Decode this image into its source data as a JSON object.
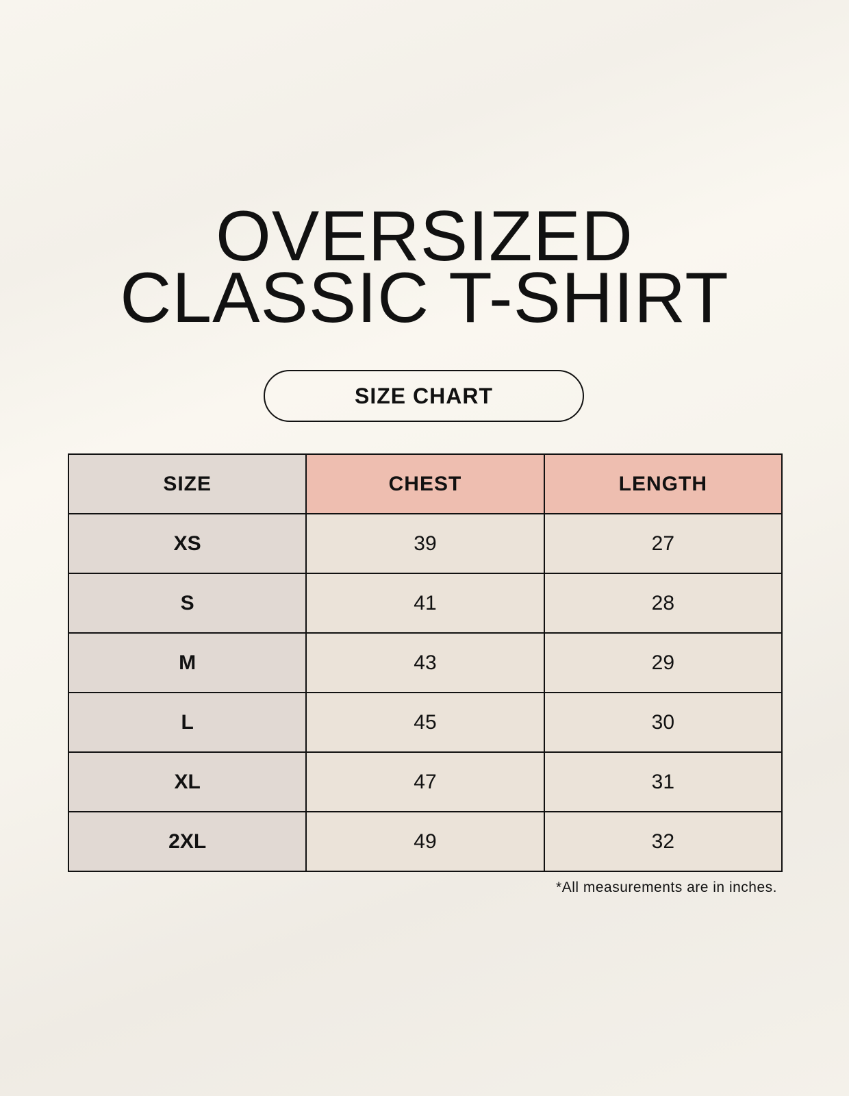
{
  "title": {
    "line1": "OVERSIZED",
    "line2": "CLASSIC T-SHIRT"
  },
  "badge": "SIZE CHART",
  "colors": {
    "size_column": "#e1d9d3",
    "header_accent": "#eebeb0",
    "cell": "#ebe3d9"
  },
  "table": {
    "headers": [
      "SIZE",
      "CHEST",
      "LENGTH"
    ],
    "rows": [
      [
        "XS",
        "39",
        "27"
      ],
      [
        "S",
        "41",
        "28"
      ],
      [
        "M",
        "43",
        "29"
      ],
      [
        "L",
        "45",
        "30"
      ],
      [
        "XL",
        "47",
        "31"
      ],
      [
        "2XL",
        "49",
        "32"
      ]
    ]
  },
  "footnote": "*All measurements are in inches."
}
